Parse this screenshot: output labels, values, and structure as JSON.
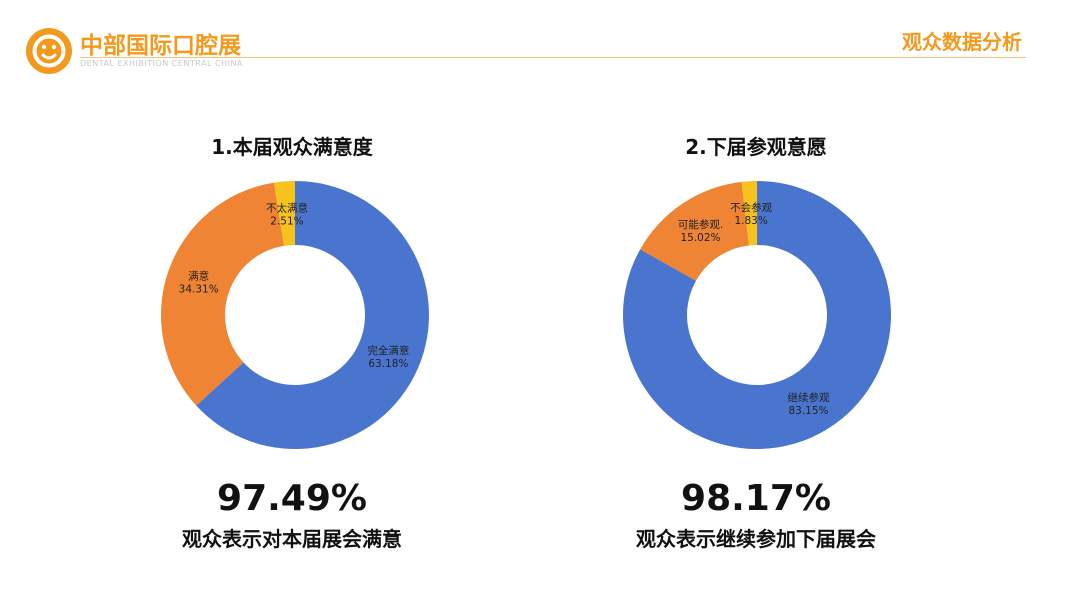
{
  "header": {
    "brand": "中部国际口腔展",
    "brand_sub": "DENTAL EXHIBITION CENTRAL CHINA",
    "section": "观众数据分析",
    "accent": "#f39a1e"
  },
  "chart_data": [
    {
      "type": "pie",
      "title": "1.本届观众满意度",
      "slices": [
        {
          "label": "完全满意",
          "value": 63.18,
          "display": "63.18%",
          "color": "#4a75cf"
        },
        {
          "label": "满意",
          "value": 34.31,
          "display": "34.31%",
          "color": "#ee8434"
        },
        {
          "label": "不太满意",
          "value": 2.51,
          "display": "2.51%",
          "color": "#f6c21b"
        }
      ],
      "summary_value": "97.49%",
      "summary_text": "观众表示对本届展会满意"
    },
    {
      "type": "pie",
      "title": "2.下届参观意愿",
      "slices": [
        {
          "label": "继续参观",
          "value": 83.15,
          "display": "83.15%",
          "color": "#4a75cf"
        },
        {
          "label": "可能参观.",
          "value": 15.02,
          "display": "15.02%",
          "color": "#ee8434"
        },
        {
          "label": "不会参观",
          "value": 1.83,
          "display": "1.83%",
          "color": "#f6c21b"
        }
      ],
      "summary_value": "98.17%",
      "summary_text": "观众表示继续参加下届展会"
    }
  ]
}
